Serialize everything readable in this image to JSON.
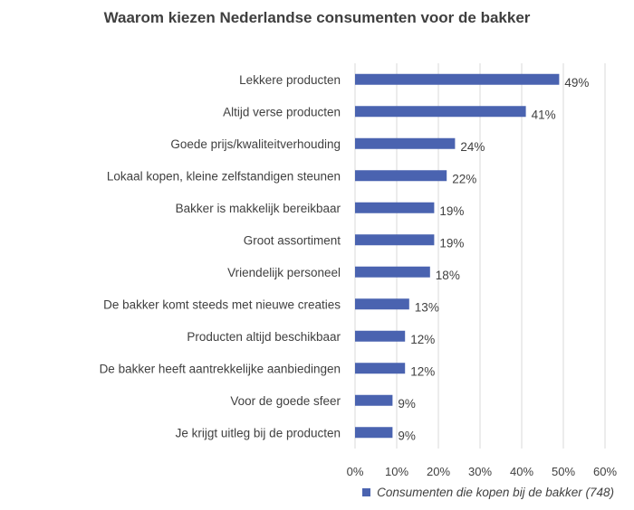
{
  "chart_data": {
    "type": "bar",
    "orientation": "horizontal",
    "title": "Waarom kiezen Nederlandse consumenten voor de bakker",
    "categories": [
      "Lekkere producten",
      "Altijd verse producten",
      "Goede prijs/kwaliteitverhouding",
      "Lokaal kopen, kleine zelfstandigen steunen",
      "Bakker is makkelijk bereikbaar",
      "Groot assortiment",
      "Vriendelijk personeel",
      "De bakker komt steeds met nieuwe creaties",
      "Producten altijd beschikbaar",
      "De bakker heeft aantrekkelijke aanbiedingen",
      "Voor de goede sfeer",
      "Je krijgt uitleg bij de producten"
    ],
    "values": [
      49,
      41,
      24,
      22,
      19,
      19,
      18,
      13,
      12,
      12,
      9,
      9
    ],
    "value_labels": [
      "49%",
      "41%",
      "24%",
      "22%",
      "19%",
      "19%",
      "18%",
      "13%",
      "12%",
      "12%",
      "9%",
      "9%"
    ],
    "series": [
      {
        "name": "Consumenten die kopen bij de bakker (748)",
        "values": [
          49,
          41,
          24,
          22,
          19,
          19,
          18,
          13,
          12,
          12,
          9,
          9
        ]
      }
    ],
    "xlim": [
      0,
      60
    ],
    "xticks": [
      "0%",
      "10%",
      "20%",
      "30%",
      "40%",
      "50%",
      "60%"
    ],
    "grid": "vertical",
    "legend_position": "bottom-right",
    "colors": {
      "bar": "#4a63b0",
      "grid": "#d9d9d9",
      "text": "#404040"
    }
  }
}
